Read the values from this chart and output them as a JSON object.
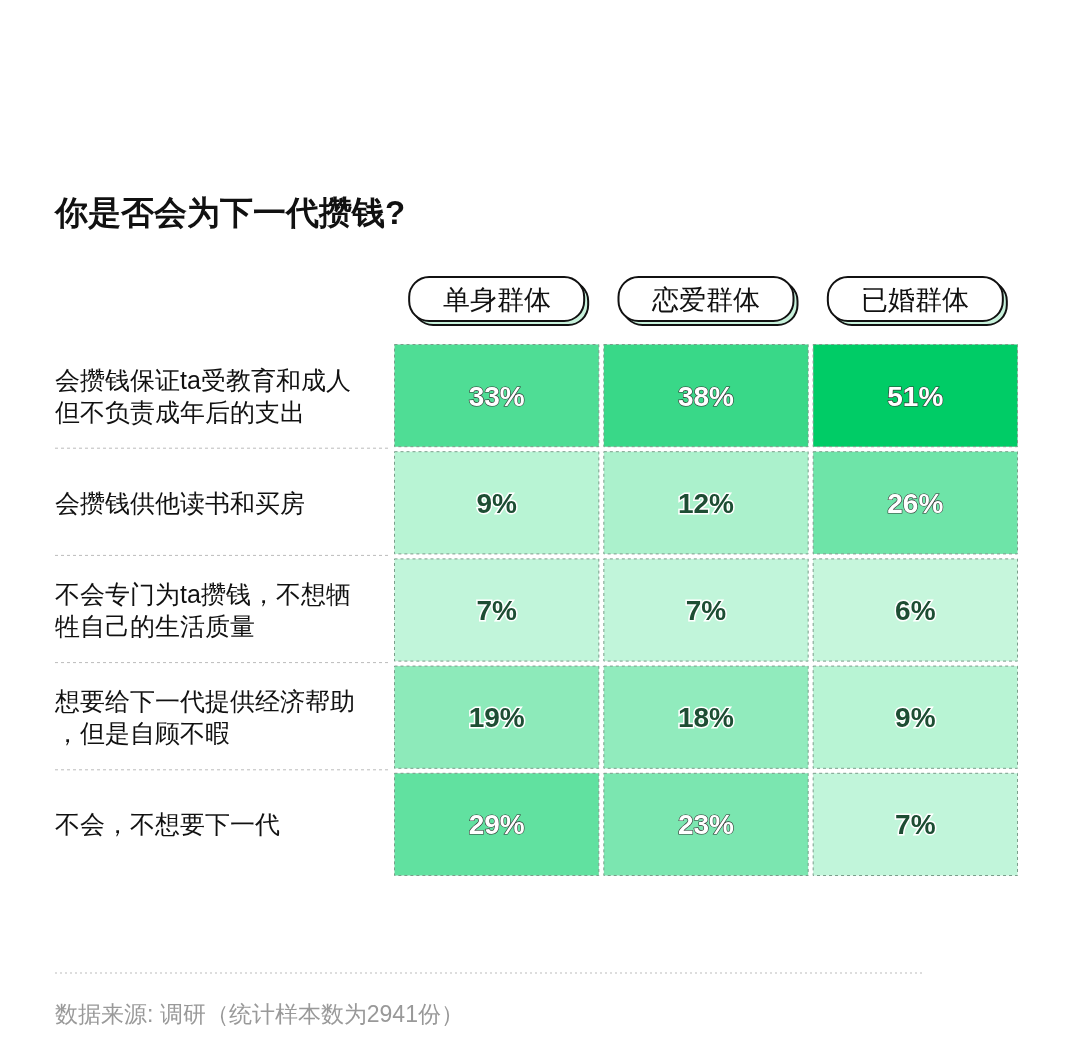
{
  "chart_data": {
    "type": "heatmap",
    "title": "你是否会为下一代攒钱?",
    "categories": [
      "单身群体",
      "恋爱群体",
      "已婚群体"
    ],
    "y_categories": [
      "会攒钱保证ta受教育和成人但不负责成年后的支出",
      "会攒钱供他读书和买房",
      "不会专门为ta攒钱，不想牺牲自己的生活质量",
      "想要给下一代提供经济帮助，但是自顾不暇",
      "不会，不想要下一代"
    ],
    "cells": [
      [
        33,
        38,
        51
      ],
      [
        9,
        12,
        26
      ],
      [
        7,
        7,
        6
      ],
      [
        19,
        18,
        9
      ],
      [
        29,
        23,
        7
      ]
    ],
    "cell_labels": [
      [
        "33%",
        "38%",
        "51%"
      ],
      [
        "9%",
        "12%",
        "26%"
      ],
      [
        "7%",
        "7%",
        "6%"
      ],
      [
        "19%",
        "18%",
        "9%"
      ],
      [
        "29%",
        "23%",
        "7%"
      ]
    ],
    "annotations": [
      "数据来源: 调研（统计样本数为2941份）"
    ]
  }
}
